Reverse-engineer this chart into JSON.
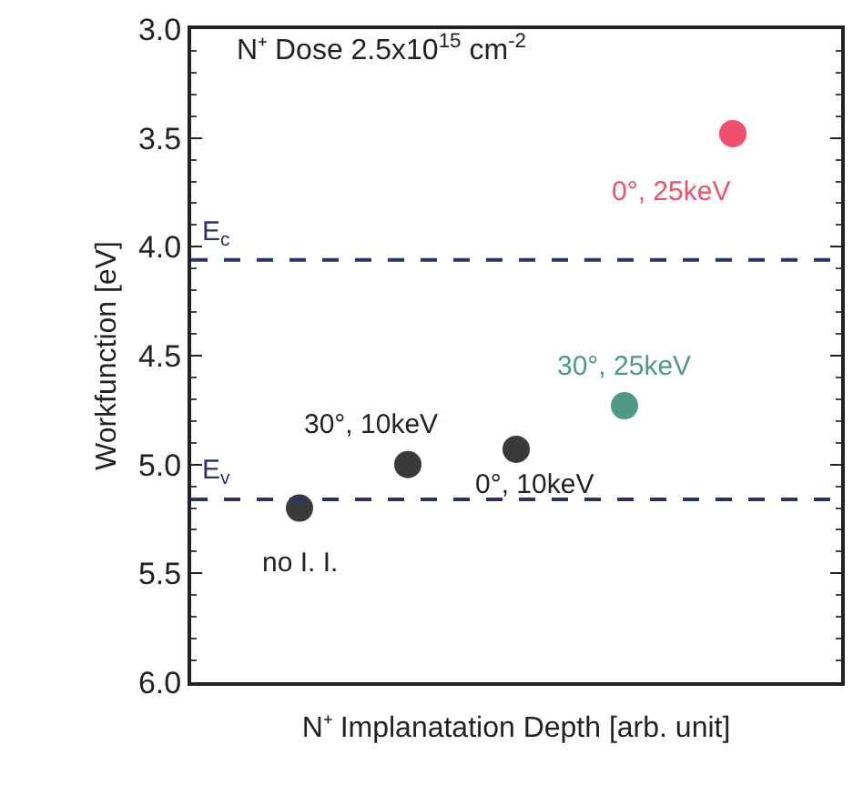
{
  "chart_data": {
    "type": "scatter",
    "title": "N⁺ Dose 2.5x10$^{15}$ cm$^{-2}$",
    "xlabel": "N⁺ Implanatation Depth [arb. unit]",
    "ylabel": "Workfunction [eV]",
    "categories": [
      null,
      null,
      null,
      null,
      null
    ],
    "series": [
      {
        "name": "no I. I.",
        "color": "#3a3a3a",
        "values": [
          5.2,
          null,
          null,
          null,
          null
        ]
      },
      {
        "name": "30°, 10keV",
        "color": "#3a3a3a",
        "values": [
          null,
          5.0,
          null,
          null,
          null
        ]
      },
      {
        "name": "0°, 10keV",
        "color": "#3a3a3a",
        "values": [
          null,
          null,
          4.93,
          null,
          null
        ]
      },
      {
        "name": "30°, 25keV",
        "color": "#4e9a84",
        "values": [
          null,
          null,
          null,
          4.73,
          null
        ]
      },
      {
        "name": "0°, 25keV",
        "color": "#f0506e",
        "values": [
          null,
          null,
          null,
          null,
          3.48
        ]
      }
    ],
    "ylim": [
      6.0,
      3.0
    ],
    "yticks": [
      {
        "value": 3,
        "label": "3.0"
      },
      {
        "value": 3.5,
        "label": "3.5"
      },
      {
        "value": 4,
        "label": "4.0"
      },
      {
        "value": 4.5,
        "label": "4.5"
      },
      {
        "value": 5,
        "label": "5.0"
      },
      {
        "value": 5.5,
        "label": "5.5"
      },
      {
        "value": 6,
        "label": "6.0"
      }
    ],
    "ref_lines": [
      {
        "axis": "y",
        "value": 4.06,
        "label": "E$_{c}$",
        "color": "#2a3566",
        "line_style": "dashed"
      },
      {
        "axis": "y",
        "value": 5.16,
        "label": "E$_{v}$",
        "color": "#2a3566",
        "line_style": "dashed"
      }
    ],
    "marker": "circle",
    "grid": false,
    "legend": false,
    "tick_labels": "y"
  }
}
